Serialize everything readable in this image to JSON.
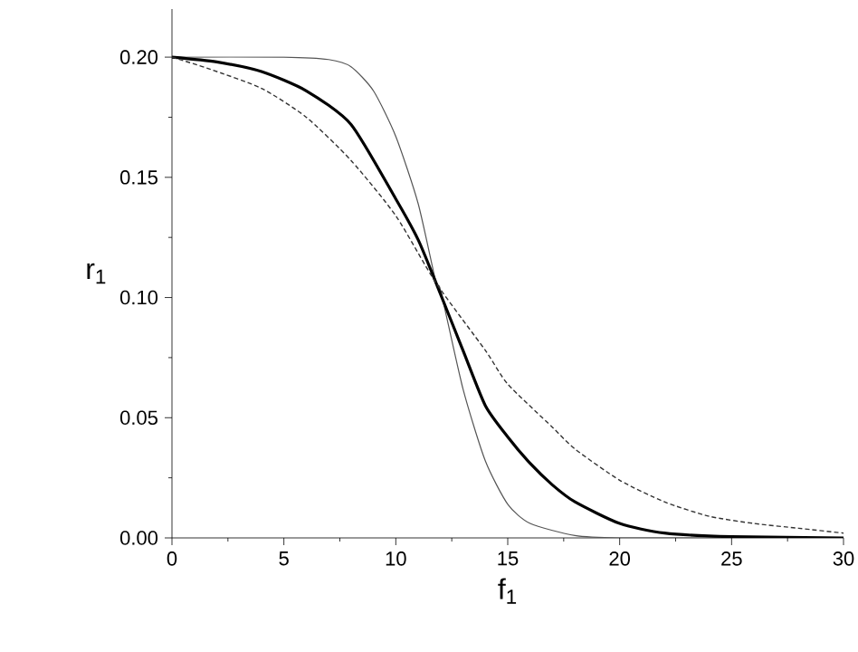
{
  "chart_data": {
    "type": "line",
    "xlabel": "f$_{1}$",
    "ylabel": "r$_{1}$",
    "xlim": [
      0,
      30
    ],
    "ylim": [
      0,
      0.22
    ],
    "xticks": [
      0,
      5,
      10,
      15,
      20,
      25,
      30
    ],
    "yticks": [
      {
        "value": 0,
        "label": "0.00"
      },
      {
        "value": 0.05,
        "label": "0.05"
      },
      {
        "value": 0.1,
        "label": "0.10"
      },
      {
        "value": 0.15,
        "label": "0.15"
      },
      {
        "value": 0.2,
        "label": "0.20"
      }
    ],
    "grid": false,
    "marker": "none",
    "series": [
      {
        "color": "#555555",
        "line_style": "solid",
        "x": [
          0,
          5,
          7,
          8,
          9,
          10,
          11,
          11.8,
          12,
          13,
          14,
          15,
          16,
          18,
          20,
          25,
          30
        ],
        "values": [
          0.2,
          0.2,
          0.199,
          0.196,
          0.186,
          0.167,
          0.139,
          0.106,
          0.103,
          0.062,
          0.032,
          0.014,
          0.006,
          0.001,
          0,
          0,
          0
        ]
      },
      {
        "color": "#000000",
        "line_style": "solid",
        "x": [
          0,
          2,
          4,
          6,
          8,
          10,
          11,
          11.8,
          13,
          14,
          15,
          16,
          17,
          18,
          20,
          22,
          25,
          30
        ],
        "values": [
          0.2,
          0.198,
          0.194,
          0.186,
          0.172,
          0.141,
          0.124,
          0.106,
          0.078,
          0.055,
          0.042,
          0.031,
          0.022,
          0.015,
          0.006,
          0.002,
          0.0005,
          0
        ]
      },
      {
        "color": "#333333",
        "line_style": "dashed",
        "x": [
          0,
          1.7,
          4,
          6,
          8,
          10,
          11.8,
          14,
          15,
          17,
          18,
          20,
          22,
          24,
          26,
          28,
          30
        ],
        "values": [
          0.2,
          0.195,
          0.187,
          0.175,
          0.157,
          0.134,
          0.106,
          0.078,
          0.064,
          0.046,
          0.037,
          0.024,
          0.015,
          0.009,
          0.006,
          0.004,
          0.002
        ]
      }
    ]
  }
}
